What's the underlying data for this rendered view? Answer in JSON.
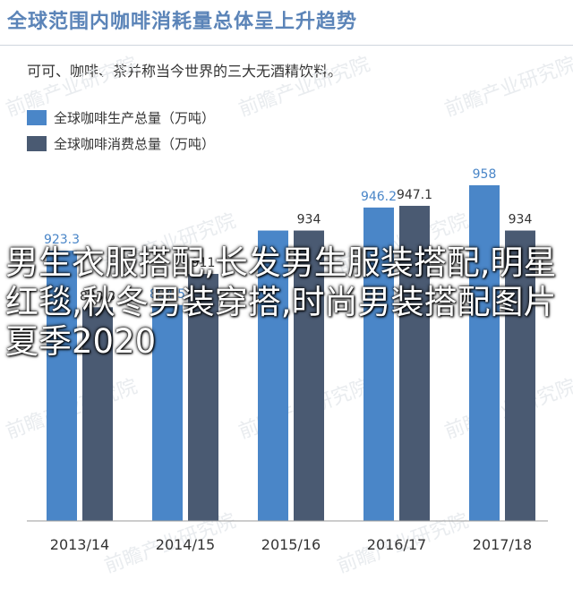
{
  "header": {
    "title": "全球范围内咖啡消耗量总体呈上升趋势",
    "subtitle": "可可、咖啡、茶并称当今世界的三大无酒精饮料。"
  },
  "overlay": {
    "text": "男生衣服搭配,长发男生服装搭配,明星红毯,秋冬男装穿搭,时尚男装搭配图片夏季2020"
  },
  "watermark": {
    "text": "前瞻产业研究院"
  },
  "colors": {
    "production": "#4a86c8",
    "consumption": "#4a5a72"
  },
  "chart_data": {
    "type": "bar",
    "categories": [
      "2013/14",
      "2014/15",
      "2015/16",
      "2016/17",
      "2017/18"
    ],
    "series": [
      {
        "name": "全球咖啡生产总量（万吨）",
        "values": [
          923.3,
          894.5,
          934,
          946.2,
          958
        ]
      },
      {
        "name": "全球咖啡消费总量（万吨）",
        "values": [
          893.3,
          911,
          934,
          947.1,
          934
        ]
      }
    ],
    "labels": [
      [
        "923.3",
        "894.5",
        "",
        "946.2",
        "958"
      ],
      [
        "893.3",
        "911",
        "934",
        "947.1",
        "934"
      ]
    ],
    "legend": "top-left",
    "grid": false
  }
}
